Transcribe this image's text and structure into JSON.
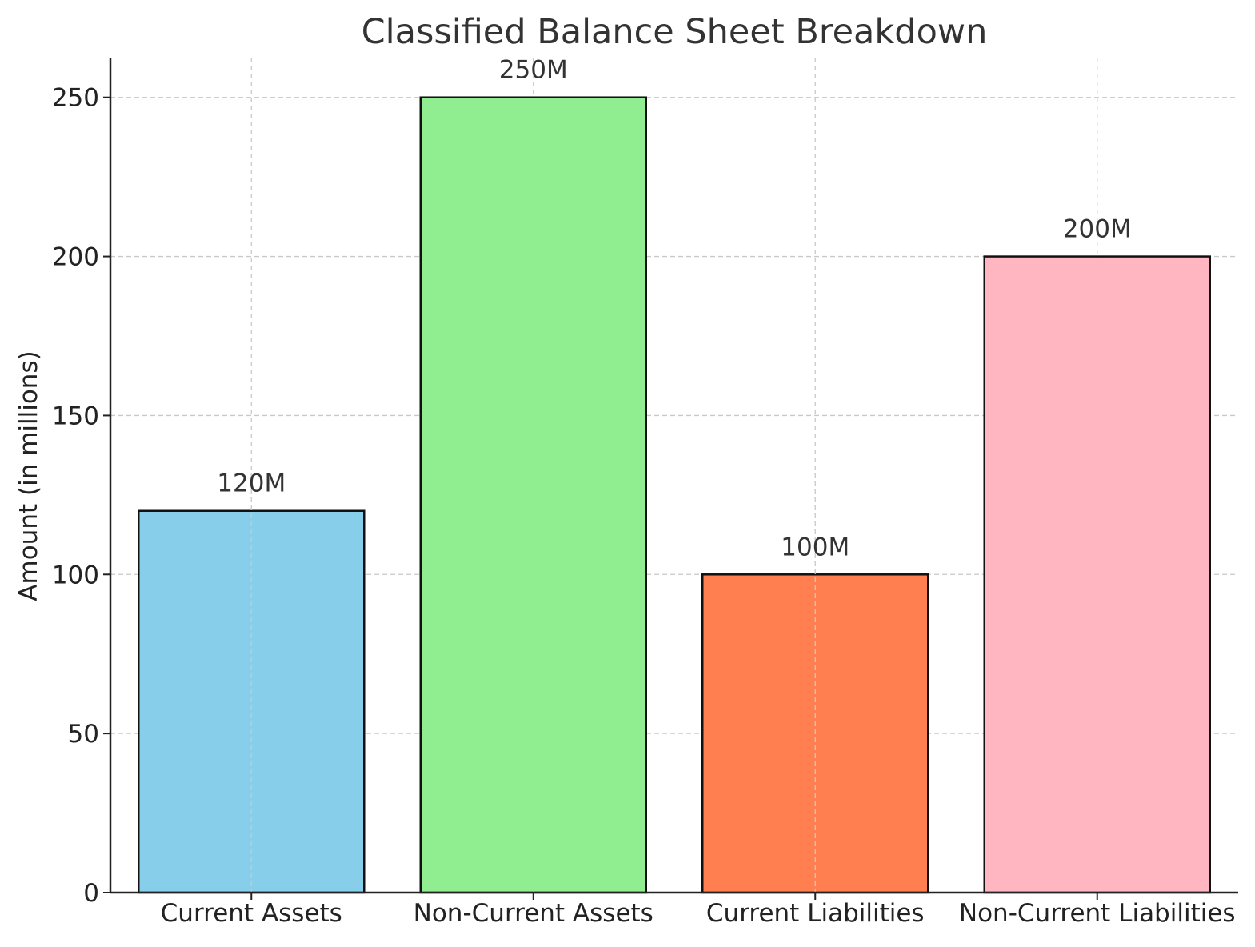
{
  "chart_data": {
    "type": "bar",
    "title": "Classified Balance Sheet Breakdown",
    "xlabel": "",
    "ylabel": "Amount (in millions)",
    "categories": [
      "Current Assets",
      "Non-Current Assets",
      "Current Liabilities",
      "Non-Current Liabilities"
    ],
    "values": [
      120,
      250,
      100,
      200
    ],
    "data_labels": [
      "120M",
      "250M",
      "100M",
      "200M"
    ],
    "colors": [
      "#87ceeb",
      "#90ee90",
      "#ff7f50",
      "#ffb6c1"
    ],
    "ylim": [
      0,
      262.5
    ],
    "yticks": [
      0,
      50,
      100,
      150,
      200,
      250
    ],
    "grid": true
  }
}
